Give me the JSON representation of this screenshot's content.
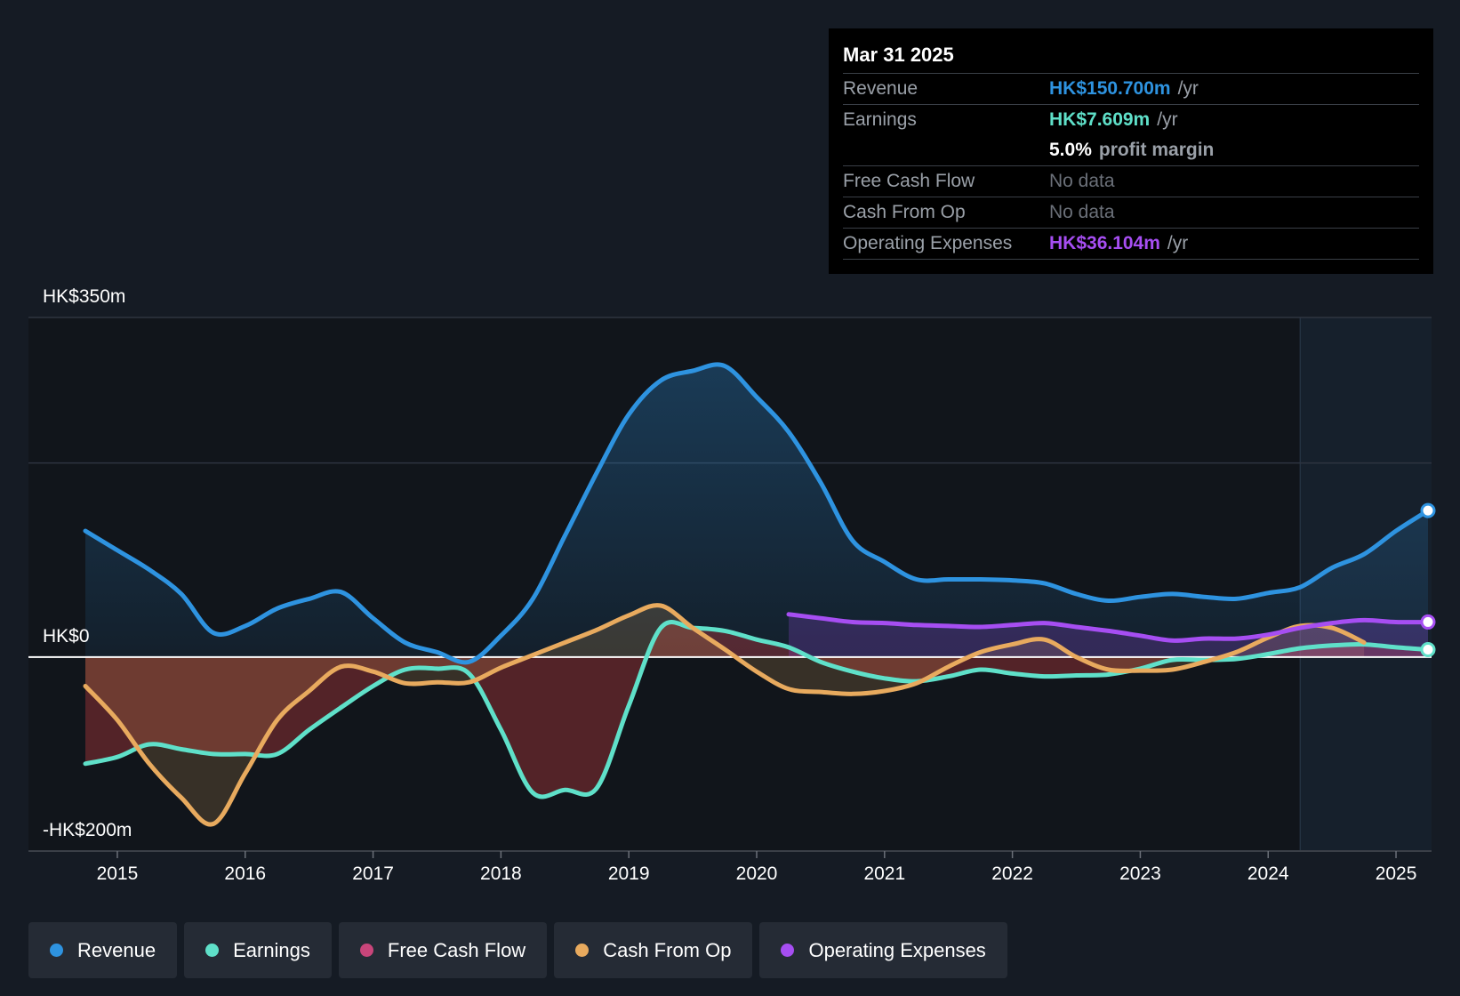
{
  "tooltip": {
    "date": "Mar 31 2025",
    "rows": {
      "revenue": {
        "label": "Revenue",
        "value": "HK$150.700m",
        "unit": "/yr",
        "color": "#2e93e0"
      },
      "earnings": {
        "label": "Earnings",
        "value": "HK$7.609m",
        "unit": "/yr",
        "color": "#5fe0c9"
      },
      "margin": {
        "value": "5.0%",
        "unit": "profit margin"
      },
      "fcf": {
        "label": "Free Cash Flow",
        "value": "No data"
      },
      "cfo": {
        "label": "Cash From Op",
        "value": "No data"
      },
      "opex": {
        "label": "Operating Expenses",
        "value": "HK$36.104m",
        "unit": "/yr",
        "color": "#a64ef2"
      }
    }
  },
  "legend": [
    {
      "label": "Revenue",
      "color": "#2e93e0"
    },
    {
      "label": "Earnings",
      "color": "#5fe0c9"
    },
    {
      "label": "Free Cash Flow",
      "color": "#c8457a"
    },
    {
      "label": "Cash From Op",
      "color": "#e8aa5e"
    },
    {
      "label": "Operating Expenses",
      "color": "#a64ef2"
    }
  ],
  "chart_data": {
    "type": "line",
    "currency_unit": "HK$ millions",
    "y_labels": {
      "top": "HK$350m",
      "zero": "HK$0",
      "bottom": "-HK$200m"
    },
    "ylim": [
      -200,
      350
    ],
    "xlim": [
      2014.75,
      2025.25
    ],
    "x_ticks": [
      2015,
      2016,
      2017,
      2018,
      2019,
      2020,
      2021,
      2022,
      2023,
      2024,
      2025
    ],
    "x_tick_labels": [
      "2015",
      "2016",
      "2017",
      "2018",
      "2019",
      "2020",
      "2021",
      "2022",
      "2023",
      "2024",
      "2025"
    ],
    "forecast_start": 2024.25,
    "gridlines": [
      350,
      200
    ],
    "series": [
      {
        "name": "Revenue",
        "color": "#2e93e0",
        "fill": true,
        "end_marker": true,
        "points": [
          [
            2014.75,
            130
          ],
          [
            2015.0,
            110
          ],
          [
            2015.25,
            90
          ],
          [
            2015.5,
            65
          ],
          [
            2015.75,
            25
          ],
          [
            2016.0,
            32
          ],
          [
            2016.25,
            50
          ],
          [
            2016.5,
            60
          ],
          [
            2016.75,
            67
          ],
          [
            2017.0,
            40
          ],
          [
            2017.25,
            15
          ],
          [
            2017.5,
            5
          ],
          [
            2017.75,
            -5
          ],
          [
            2018.0,
            22
          ],
          [
            2018.25,
            60
          ],
          [
            2018.5,
            125
          ],
          [
            2018.75,
            190
          ],
          [
            2019.0,
            250
          ],
          [
            2019.25,
            285
          ],
          [
            2019.5,
            295
          ],
          [
            2019.75,
            300
          ],
          [
            2020.0,
            268
          ],
          [
            2020.25,
            232
          ],
          [
            2020.5,
            180
          ],
          [
            2020.75,
            120
          ],
          [
            2021.0,
            98
          ],
          [
            2021.25,
            80
          ],
          [
            2021.5,
            80
          ],
          [
            2021.75,
            80
          ],
          [
            2022.0,
            79
          ],
          [
            2022.25,
            76
          ],
          [
            2022.5,
            65
          ],
          [
            2022.75,
            58
          ],
          [
            2023.0,
            62
          ],
          [
            2023.25,
            65
          ],
          [
            2023.5,
            62
          ],
          [
            2023.75,
            60
          ],
          [
            2024.0,
            66
          ],
          [
            2024.25,
            72
          ],
          [
            2024.5,
            92
          ],
          [
            2024.75,
            106
          ],
          [
            2025.0,
            130
          ],
          [
            2025.25,
            151
          ]
        ]
      },
      {
        "name": "Earnings",
        "color": "#5fe0c9",
        "fill": true,
        "end_marker": true,
        "points": [
          [
            2014.75,
            -110
          ],
          [
            2015.0,
            -103
          ],
          [
            2015.25,
            -90
          ],
          [
            2015.5,
            -95
          ],
          [
            2015.75,
            -100
          ],
          [
            2016.0,
            -100
          ],
          [
            2016.25,
            -100
          ],
          [
            2016.5,
            -75
          ],
          [
            2016.75,
            -52
          ],
          [
            2017.0,
            -30
          ],
          [
            2017.25,
            -13
          ],
          [
            2017.5,
            -12
          ],
          [
            2017.75,
            -17
          ],
          [
            2018.0,
            -75
          ],
          [
            2018.25,
            -140
          ],
          [
            2018.5,
            -137
          ],
          [
            2018.75,
            -135
          ],
          [
            2019.0,
            -50
          ],
          [
            2019.25,
            30
          ],
          [
            2019.5,
            30
          ],
          [
            2019.75,
            27
          ],
          [
            2020.0,
            18
          ],
          [
            2020.25,
            10
          ],
          [
            2020.5,
            -5
          ],
          [
            2020.75,
            -15
          ],
          [
            2021.0,
            -22
          ],
          [
            2021.25,
            -25
          ],
          [
            2021.5,
            -20
          ],
          [
            2021.75,
            -13
          ],
          [
            2022.0,
            -17
          ],
          [
            2022.25,
            -20
          ],
          [
            2022.5,
            -19
          ],
          [
            2022.75,
            -18
          ],
          [
            2023.0,
            -12
          ],
          [
            2023.25,
            -3
          ],
          [
            2023.5,
            -3
          ],
          [
            2023.75,
            -2
          ],
          [
            2024.0,
            3
          ],
          [
            2024.25,
            9
          ],
          [
            2024.5,
            12
          ],
          [
            2024.75,
            13
          ],
          [
            2025.0,
            10
          ],
          [
            2025.25,
            7.6
          ]
        ]
      },
      {
        "name": "Cash From Op",
        "color": "#e8aa5e",
        "fill": true,
        "end_marker": false,
        "points": [
          [
            2014.75,
            -30
          ],
          [
            2015.0,
            -65
          ],
          [
            2015.25,
            -110
          ],
          [
            2015.5,
            -145
          ],
          [
            2015.75,
            -172
          ],
          [
            2016.0,
            -120
          ],
          [
            2016.25,
            -65
          ],
          [
            2016.5,
            -35
          ],
          [
            2016.75,
            -10
          ],
          [
            2017.0,
            -15
          ],
          [
            2017.25,
            -27
          ],
          [
            2017.5,
            -26
          ],
          [
            2017.75,
            -26
          ],
          [
            2018.0,
            -11
          ],
          [
            2018.25,
            2
          ],
          [
            2018.5,
            15
          ],
          [
            2018.75,
            28
          ],
          [
            2019.0,
            43
          ],
          [
            2019.25,
            53
          ],
          [
            2019.5,
            30
          ],
          [
            2019.75,
            8
          ],
          [
            2020.0,
            -15
          ],
          [
            2020.25,
            -33
          ],
          [
            2020.5,
            -36
          ],
          [
            2020.75,
            -38
          ],
          [
            2021.0,
            -35
          ],
          [
            2021.25,
            -27
          ],
          [
            2021.5,
            -10
          ],
          [
            2021.75,
            5
          ],
          [
            2022.0,
            13
          ],
          [
            2022.25,
            18
          ],
          [
            2022.5,
            0
          ],
          [
            2022.75,
            -13
          ],
          [
            2023.0,
            -14
          ],
          [
            2023.25,
            -13
          ],
          [
            2023.5,
            -5
          ],
          [
            2023.75,
            5
          ],
          [
            2024.0,
            20
          ],
          [
            2024.25,
            32
          ],
          [
            2024.5,
            30
          ],
          [
            2024.75,
            15
          ]
        ]
      },
      {
        "name": "Operating Expenses",
        "color": "#a64ef2",
        "fill": true,
        "end_marker": true,
        "points": [
          [
            2020.25,
            44
          ],
          [
            2020.5,
            40
          ],
          [
            2020.75,
            36
          ],
          [
            2021.0,
            35
          ],
          [
            2021.25,
            33
          ],
          [
            2021.5,
            32
          ],
          [
            2021.75,
            31
          ],
          [
            2022.0,
            33
          ],
          [
            2022.25,
            35
          ],
          [
            2022.5,
            31
          ],
          [
            2022.75,
            27
          ],
          [
            2023.0,
            22
          ],
          [
            2023.25,
            17
          ],
          [
            2023.5,
            19
          ],
          [
            2023.75,
            19
          ],
          [
            2024.0,
            23
          ],
          [
            2024.25,
            30
          ],
          [
            2024.5,
            35
          ],
          [
            2024.75,
            38
          ],
          [
            2025.0,
            36
          ],
          [
            2025.25,
            36.1
          ]
        ]
      }
    ]
  }
}
